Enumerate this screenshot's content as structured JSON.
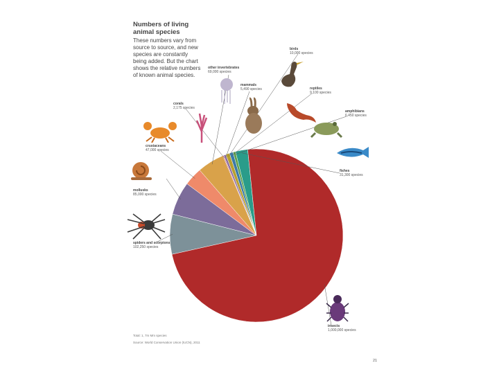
{
  "header": {
    "title": "Numbers of living animal species",
    "intro": "These numbers vary from source to source, and new species are constantly being added. But the chart shows the relative numbers of known animal species."
  },
  "footer": {
    "note1": "Total: 1, 7m Mm species",
    "note2": "Source: World Conservation Union (IUCN), 2011",
    "page_number": "21"
  },
  "colors": {
    "top_bar": "#c8502a"
  },
  "chart_data": {
    "type": "pie",
    "title": "Numbers of living animal species",
    "slices": [
      {
        "name": "insects",
        "count_label": "1,000,000 species",
        "value": 1000000,
        "color": "#b02a2a"
      },
      {
        "name": "spiders and scorpions",
        "count_label": "102,250 species",
        "value": 102250,
        "color": "#7d9199"
      },
      {
        "name": "mollusks",
        "count_label": "85,000 species",
        "value": 85000,
        "color": "#7c6c9a"
      },
      {
        "name": "crustaceans",
        "count_label": "47,000 species",
        "value": 47000,
        "color": "#ef8a6a"
      },
      {
        "name": "other invertebrates",
        "count_label": "69,000 species",
        "value": 69000,
        "color": "#d9a24a"
      },
      {
        "name": "corals",
        "count_label": "2,175 species",
        "value": 2175,
        "color": "#c86a7a"
      },
      {
        "name": "mammals",
        "count_label": "5,490 species",
        "value": 5490,
        "color": "#8a6aa0"
      },
      {
        "name": "birds",
        "count_label": "10,000 species",
        "value": 10000,
        "color": "#b8a030"
      },
      {
        "name": "reptiles",
        "count_label": "9,100 species",
        "value": 9100,
        "color": "#3a7aa8"
      },
      {
        "name": "amphibians",
        "count_label": "6,450 species",
        "value": 6450,
        "color": "#5ea04a"
      },
      {
        "name": "fishes",
        "count_label": "31,300 species",
        "value": 31300,
        "color": "#2a9c8a"
      }
    ],
    "legend": "none"
  }
}
